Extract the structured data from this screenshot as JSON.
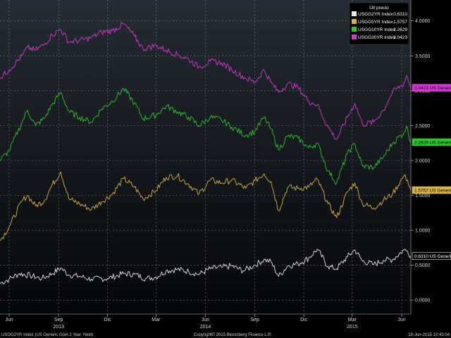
{
  "chart_data": {
    "type": "line",
    "x_ticks": [
      {
        "label": "Jun",
        "date": "2013-06-01"
      },
      {
        "label": "Sep",
        "date": "2013-09-01"
      },
      {
        "label": "Dic",
        "date": "2013-12-01"
      },
      {
        "label": "Mar",
        "date": "2014-03-01"
      },
      {
        "label": "Jun",
        "date": "2014-06-01"
      },
      {
        "label": "Sep",
        "date": "2014-09-01"
      },
      {
        "label": "Dic",
        "date": "2014-12-01"
      },
      {
        "label": "Mar",
        "date": "2015-03-01"
      },
      {
        "label": "Jun",
        "date": "2015-06-01"
      }
    ],
    "year_labels": [
      {
        "label": "2013",
        "date": "2013-09-01"
      },
      {
        "label": "2014",
        "date": "2014-06-01"
      },
      {
        "label": "2015",
        "date": "2015-03-01"
      }
    ],
    "x_range": [
      "2013-05-15",
      "2015-06-18"
    ],
    "y_ticks": [
      "0.0000",
      "0.5000",
      "1.0000",
      "1.5000",
      "2.0000",
      "2.5000",
      "3.0000",
      "3.5000",
      "4.0000"
    ],
    "ylim": [
      -0.2,
      4.3
    ],
    "grid": true,
    "legend": {
      "title": "Últ precio",
      "position": "top-right",
      "entries": [
        {
          "label": "USGG2YR Index",
          "value": "0.6310",
          "color": "#e8e8e8"
        },
        {
          "label": "USGG5YR Index",
          "value": "1.5757",
          "color": "#d4b44a"
        },
        {
          "label": "USGG10YR Index",
          "value": "2.2629",
          "color": "#2ec52e"
        },
        {
          "label": "USGG30YR Index",
          "value": "3.0423",
          "color": "#d23ad2"
        }
      ]
    },
    "series": [
      {
        "name": "USGG2YR Index",
        "color": "#e8e8e8",
        "last_label": "0.6310 US Generi",
        "last_value": 0.631,
        "points": [
          [
            "2013-05-15",
            0.24
          ],
          [
            "2013-06-01",
            0.3
          ],
          [
            "2013-06-20",
            0.38
          ],
          [
            "2013-07-10",
            0.35
          ],
          [
            "2013-08-01",
            0.31
          ],
          [
            "2013-08-20",
            0.38
          ],
          [
            "2013-09-05",
            0.46
          ],
          [
            "2013-09-20",
            0.36
          ],
          [
            "2013-10-10",
            0.34
          ],
          [
            "2013-11-01",
            0.3
          ],
          [
            "2013-12-01",
            0.31
          ],
          [
            "2013-12-31",
            0.38
          ],
          [
            "2014-01-20",
            0.37
          ],
          [
            "2014-02-10",
            0.31
          ],
          [
            "2014-03-01",
            0.33
          ],
          [
            "2014-03-20",
            0.42
          ],
          [
            "2014-04-10",
            0.44
          ],
          [
            "2014-05-01",
            0.41
          ],
          [
            "2014-05-20",
            0.37
          ],
          [
            "2014-06-10",
            0.45
          ],
          [
            "2014-07-01",
            0.47
          ],
          [
            "2014-07-20",
            0.49
          ],
          [
            "2014-08-10",
            0.42
          ],
          [
            "2014-09-01",
            0.5
          ],
          [
            "2014-09-18",
            0.58
          ],
          [
            "2014-10-01",
            0.55
          ],
          [
            "2014-10-15",
            0.34
          ],
          [
            "2014-11-01",
            0.49
          ],
          [
            "2014-11-20",
            0.52
          ],
          [
            "2014-12-10",
            0.6
          ],
          [
            "2014-12-26",
            0.73
          ],
          [
            "2015-01-15",
            0.48
          ],
          [
            "2015-01-31",
            0.45
          ],
          [
            "2015-02-20",
            0.62
          ],
          [
            "2015-03-06",
            0.72
          ],
          [
            "2015-03-20",
            0.56
          ],
          [
            "2015-04-10",
            0.51
          ],
          [
            "2015-04-28",
            0.57
          ],
          [
            "2015-05-15",
            0.58
          ],
          [
            "2015-06-05",
            0.72
          ],
          [
            "2015-06-12",
            0.7
          ],
          [
            "2015-06-18",
            0.631
          ]
        ]
      },
      {
        "name": "USGG5YR Index",
        "color": "#d4b44a",
        "last_label": "1.5757 US Generi",
        "last_value": 1.5757,
        "points": [
          [
            "2013-05-15",
            0.85
          ],
          [
            "2013-06-01",
            1.05
          ],
          [
            "2013-06-25",
            1.42
          ],
          [
            "2013-07-05",
            1.5
          ],
          [
            "2013-07-20",
            1.35
          ],
          [
            "2013-08-05",
            1.42
          ],
          [
            "2013-08-20",
            1.65
          ],
          [
            "2013-09-05",
            1.84
          ],
          [
            "2013-09-20",
            1.45
          ],
          [
            "2013-10-10",
            1.38
          ],
          [
            "2013-11-01",
            1.3
          ],
          [
            "2013-11-20",
            1.41
          ],
          [
            "2013-12-10",
            1.52
          ],
          [
            "2013-12-31",
            1.74
          ],
          [
            "2014-01-20",
            1.62
          ],
          [
            "2014-02-05",
            1.45
          ],
          [
            "2014-03-01",
            1.57
          ],
          [
            "2014-03-20",
            1.76
          ],
          [
            "2014-04-10",
            1.78
          ],
          [
            "2014-05-01",
            1.66
          ],
          [
            "2014-05-20",
            1.52
          ],
          [
            "2014-06-10",
            1.72
          ],
          [
            "2014-07-01",
            1.68
          ],
          [
            "2014-07-20",
            1.72
          ],
          [
            "2014-08-15",
            1.6
          ],
          [
            "2014-09-01",
            1.71
          ],
          [
            "2014-09-18",
            1.81
          ],
          [
            "2014-10-01",
            1.7
          ],
          [
            "2014-10-15",
            1.28
          ],
          [
            "2014-11-01",
            1.62
          ],
          [
            "2014-11-20",
            1.6
          ],
          [
            "2014-12-10",
            1.62
          ],
          [
            "2014-12-26",
            1.73
          ],
          [
            "2015-01-15",
            1.38
          ],
          [
            "2015-01-31",
            1.18
          ],
          [
            "2015-02-20",
            1.55
          ],
          [
            "2015-03-06",
            1.68
          ],
          [
            "2015-03-20",
            1.38
          ],
          [
            "2015-04-10",
            1.32
          ],
          [
            "2015-04-28",
            1.43
          ],
          [
            "2015-05-15",
            1.52
          ],
          [
            "2015-06-05",
            1.78
          ],
          [
            "2015-06-12",
            1.72
          ],
          [
            "2015-06-18",
            1.5757
          ]
        ]
      },
      {
        "name": "USGG10YR Index",
        "color": "#2ec52e",
        "last_label": "2.2629 US Generi",
        "last_value": 2.2629,
        "points": [
          [
            "2013-05-15",
            2.0
          ],
          [
            "2013-06-01",
            2.14
          ],
          [
            "2013-06-25",
            2.55
          ],
          [
            "2013-07-05",
            2.72
          ],
          [
            "2013-07-20",
            2.5
          ],
          [
            "2013-08-05",
            2.6
          ],
          [
            "2013-08-20",
            2.8
          ],
          [
            "2013-09-05",
            2.98
          ],
          [
            "2013-09-20",
            2.7
          ],
          [
            "2013-10-10",
            2.62
          ],
          [
            "2013-11-01",
            2.55
          ],
          [
            "2013-11-20",
            2.74
          ],
          [
            "2013-12-10",
            2.85
          ],
          [
            "2013-12-31",
            3.03
          ],
          [
            "2014-01-20",
            2.82
          ],
          [
            "2014-02-05",
            2.6
          ],
          [
            "2014-03-01",
            2.65
          ],
          [
            "2014-03-20",
            2.78
          ],
          [
            "2014-04-10",
            2.7
          ],
          [
            "2014-05-01",
            2.62
          ],
          [
            "2014-05-20",
            2.5
          ],
          [
            "2014-06-10",
            2.62
          ],
          [
            "2014-07-01",
            2.58
          ],
          [
            "2014-07-20",
            2.48
          ],
          [
            "2014-08-15",
            2.36
          ],
          [
            "2014-09-01",
            2.42
          ],
          [
            "2014-09-18",
            2.62
          ],
          [
            "2014-10-01",
            2.45
          ],
          [
            "2014-10-15",
            2.15
          ],
          [
            "2014-11-01",
            2.35
          ],
          [
            "2014-11-20",
            2.32
          ],
          [
            "2014-12-10",
            2.18
          ],
          [
            "2014-12-26",
            2.25
          ],
          [
            "2015-01-15",
            1.85
          ],
          [
            "2015-01-31",
            1.68
          ],
          [
            "2015-02-20",
            2.1
          ],
          [
            "2015-03-06",
            2.24
          ],
          [
            "2015-03-20",
            1.92
          ],
          [
            "2015-04-10",
            1.9
          ],
          [
            "2015-04-28",
            2.05
          ],
          [
            "2015-05-15",
            2.25
          ],
          [
            "2015-06-05",
            2.4
          ],
          [
            "2015-06-10",
            2.49
          ],
          [
            "2015-06-18",
            2.2629
          ]
        ]
      },
      {
        "name": "USGG30YR Index",
        "color": "#d23ad2",
        "last_label": "3.0423 US Generi",
        "last_value": 3.0423,
        "points": [
          [
            "2013-05-15",
            3.18
          ],
          [
            "2013-06-01",
            3.3
          ],
          [
            "2013-06-25",
            3.5
          ],
          [
            "2013-07-05",
            3.62
          ],
          [
            "2013-07-20",
            3.58
          ],
          [
            "2013-08-05",
            3.66
          ],
          [
            "2013-08-20",
            3.8
          ],
          [
            "2013-09-05",
            3.88
          ],
          [
            "2013-09-20",
            3.7
          ],
          [
            "2013-10-10",
            3.72
          ],
          [
            "2013-11-01",
            3.76
          ],
          [
            "2013-11-20",
            3.84
          ],
          [
            "2013-12-10",
            3.86
          ],
          [
            "2013-12-31",
            3.96
          ],
          [
            "2014-01-20",
            3.78
          ],
          [
            "2014-02-05",
            3.6
          ],
          [
            "2014-03-01",
            3.65
          ],
          [
            "2014-03-20",
            3.58
          ],
          [
            "2014-04-10",
            3.52
          ],
          [
            "2014-05-01",
            3.45
          ],
          [
            "2014-05-20",
            3.34
          ],
          [
            "2014-06-10",
            3.42
          ],
          [
            "2014-07-01",
            3.4
          ],
          [
            "2014-07-20",
            3.3
          ],
          [
            "2014-08-15",
            3.18
          ],
          [
            "2014-09-01",
            3.12
          ],
          [
            "2014-09-18",
            3.3
          ],
          [
            "2014-10-01",
            3.12
          ],
          [
            "2014-10-15",
            2.98
          ],
          [
            "2014-11-01",
            3.1
          ],
          [
            "2014-11-20",
            3.05
          ],
          [
            "2014-12-10",
            2.85
          ],
          [
            "2014-12-26",
            2.8
          ],
          [
            "2015-01-15",
            2.48
          ],
          [
            "2015-01-31",
            2.3
          ],
          [
            "2015-02-20",
            2.62
          ],
          [
            "2015-03-06",
            2.82
          ],
          [
            "2015-03-20",
            2.52
          ],
          [
            "2015-04-10",
            2.55
          ],
          [
            "2015-04-28",
            2.72
          ],
          [
            "2015-05-15",
            2.98
          ],
          [
            "2015-06-05",
            3.1
          ],
          [
            "2015-06-10",
            3.22
          ],
          [
            "2015-06-18",
            3.0423
          ]
        ]
      }
    ]
  },
  "footer": {
    "left": "USGG2YR Index (US Generic Govt 2 Year Yield)",
    "center": "Copyright© 2015 Bloomberg Finance L.P.",
    "right": "18-Jun-2015  10:43:04"
  }
}
